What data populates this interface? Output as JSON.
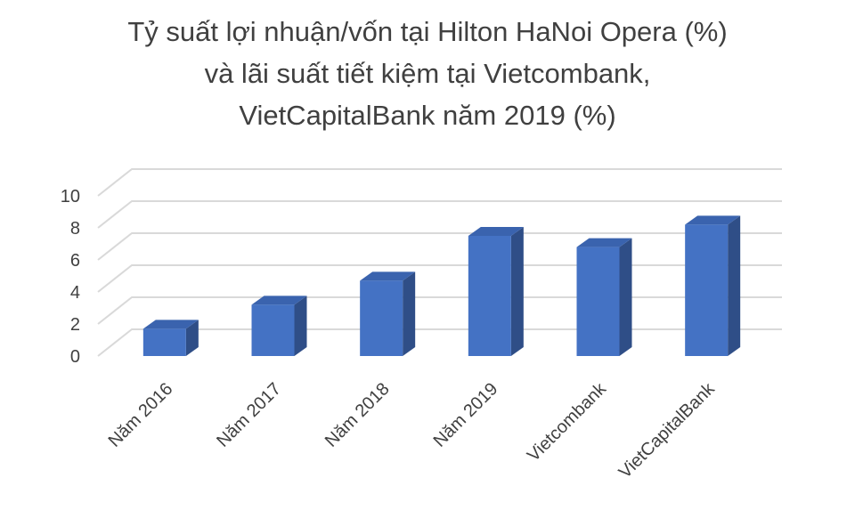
{
  "chart_data": {
    "type": "bar",
    "title_lines": [
      "Tỷ suất lợi nhuận/vốn tại Hilton HaNoi Opera (%)",
      "và lãi suất tiết kiệm tại Vietcombank,",
      "VietCapitalBank năm 2019 (%)"
    ],
    "categories": [
      "Năm 2016",
      "Năm 2017",
      "Năm 2018",
      "Năm 2019",
      "Vietcombank",
      "VietCapitalBank"
    ],
    "values": [
      1.7,
      3.2,
      4.7,
      7.5,
      6.8,
      8.2
    ],
    "ylim": [
      0,
      10
    ],
    "yticks": [
      0,
      2,
      4,
      6,
      8,
      10
    ],
    "grid": true,
    "legend": "none",
    "bar_color": "#4472C4",
    "bar_side_color": "#2F4E87",
    "bar_top_color": "#3A63AE",
    "grid_color": "#D9D9D9"
  }
}
